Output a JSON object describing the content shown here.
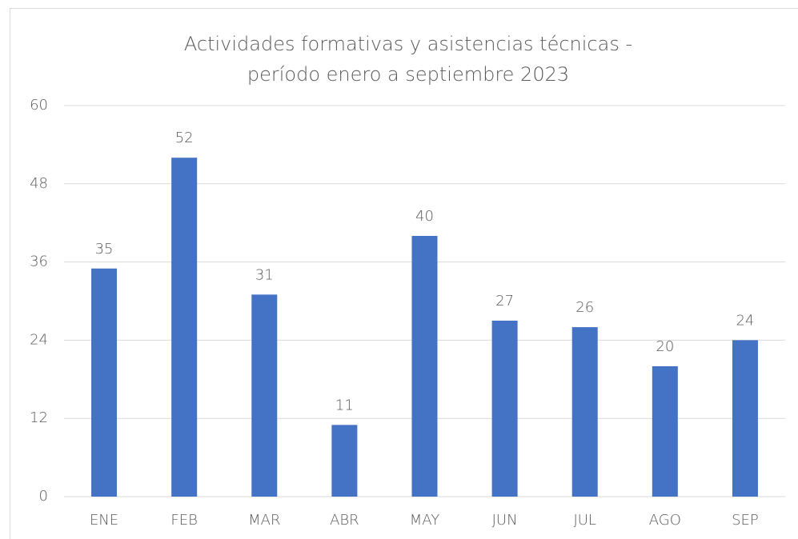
{
  "chart_data": {
    "type": "bar",
    "title": [
      "Actividades formativas y asistencias técnicas  -",
      "período enero a septiembre 2023"
    ],
    "categories": [
      "ENE",
      "FEB",
      "MAR",
      "ABR",
      "MAY",
      "JUN",
      "JUL",
      "AGO",
      "SEP"
    ],
    "values": [
      35,
      52,
      31,
      11,
      40,
      27,
      26,
      20,
      24
    ],
    "color": "#4472c4",
    "ylim": [
      0,
      60
    ],
    "yticks": [
      0,
      12,
      24,
      36,
      48,
      60
    ],
    "grid": true
  }
}
